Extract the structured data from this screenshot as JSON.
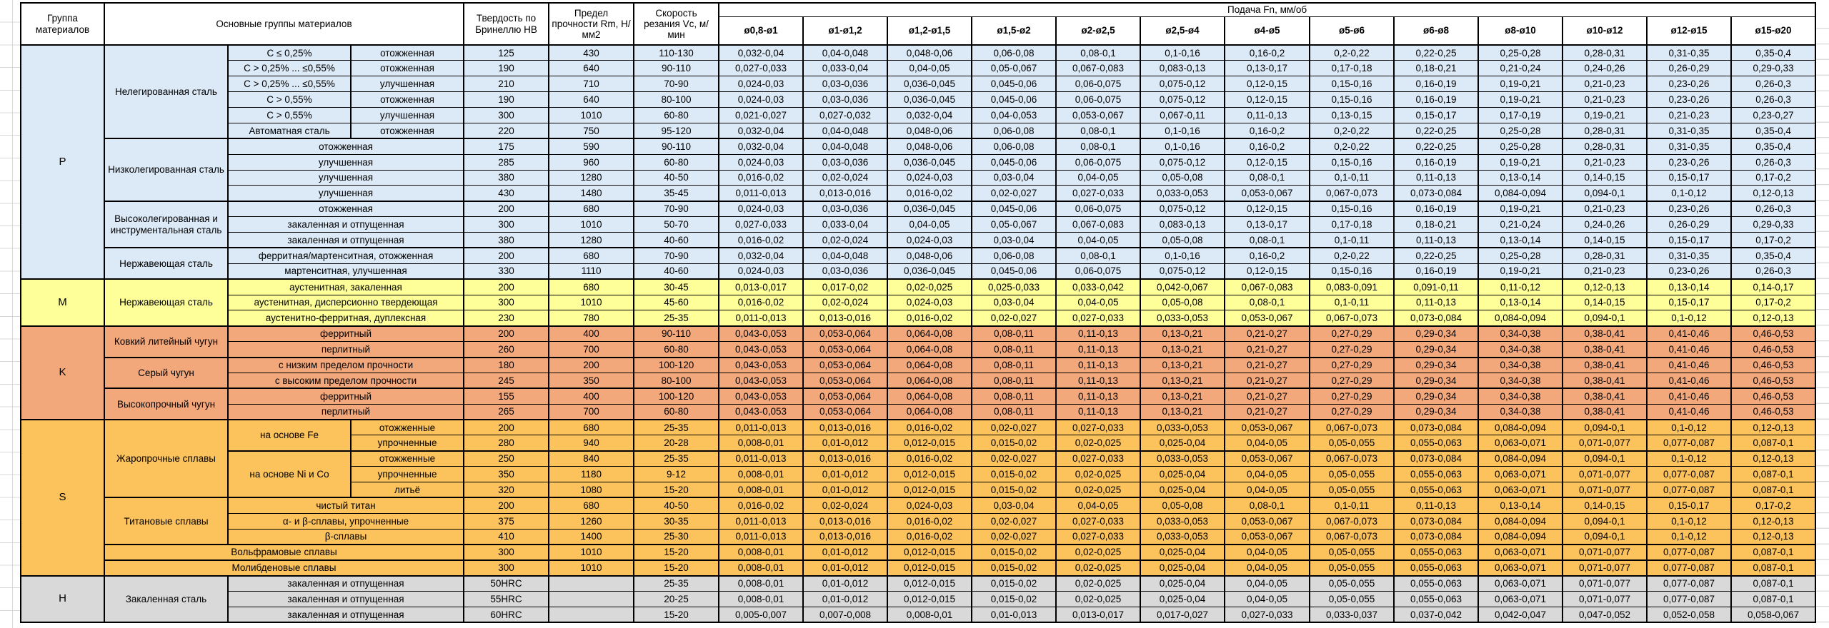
{
  "header": {
    "col_group": "Группа материалов",
    "col_main": "Основные группы материалов",
    "col_hb": "Твердость по Бринеллю HB",
    "col_rm": "Предел прочности Rm, Н/мм2",
    "col_vc": "Скорость резания Vc, м/мин",
    "col_feed": "Подача Fn, мм/об",
    "diameters": [
      "ø0,8-ø1",
      "ø1-ø1,2",
      "ø1,2-ø1,5",
      "ø1,5-ø2",
      "ø2-ø2,5",
      "ø2,5-ø4",
      "ø4-ø5",
      "ø5-ø6",
      "ø6-ø8",
      "ø8-ø10",
      "ø10-ø12",
      "ø12-ø15",
      "ø15-ø20"
    ]
  },
  "feed_sequences": {
    "A": [
      "0,032-0,04",
      "0,04-0,048",
      "0,048-0,06",
      "0,06-0,08",
      "0,08-0,1",
      "0,1-0,16",
      "0,16-0,2",
      "0,2-0,22",
      "0,22-0,25",
      "0,25-0,28",
      "0,28-0,31",
      "0,31-0,35",
      "0,35-0,4"
    ],
    "B": [
      "0,027-0,033",
      "0,033-0,04",
      "0,04-0,05",
      "0,05-0,067",
      "0,067-0,083",
      "0,083-0,13",
      "0,13-0,17",
      "0,17-0,18",
      "0,18-0,21",
      "0,21-0,24",
      "0,24-0,26",
      "0,26-0,29",
      "0,29-0,33"
    ],
    "C": [
      "0,024-0,03",
      "0,03-0,036",
      "0,036-0,045",
      "0,045-0,06",
      "0,06-0,075",
      "0,075-0,12",
      "0,12-0,15",
      "0,15-0,16",
      "0,16-0,19",
      "0,19-0,21",
      "0,21-0,23",
      "0,23-0,26",
      "0,26-0,3"
    ],
    "D": [
      "0,021-0,027",
      "0,027-0,032",
      "0,032-0,04",
      "0,04-0,053",
      "0,053-0,067",
      "0,067-0,11",
      "0,11-0,13",
      "0,13-0,15",
      "0,15-0,17",
      "0,17-0,19",
      "0,19-0,21",
      "0,21-0,23",
      "0,23-0,27"
    ],
    "E": [
      "0,016-0,02",
      "0,02-0,024",
      "0,024-0,03",
      "0,03-0,04",
      "0,04-0,05",
      "0,05-0,08",
      "0,08-0,1",
      "0,1-0,11",
      "0,11-0,13",
      "0,13-0,14",
      "0,14-0,15",
      "0,15-0,17",
      "0,17-0,2"
    ],
    "F": [
      "0,011-0,013",
      "0,013-0,016",
      "0,016-0,02",
      "0,02-0,027",
      "0,027-0,033",
      "0,033-0,053",
      "0,053-0,067",
      "0,067-0,073",
      "0,073-0,084",
      "0,084-0,094",
      "0,094-0,1",
      "0,1-0,12",
      "0,12-0,13"
    ],
    "G": [
      "0,013-0,017",
      "0,017-0,02",
      "0,02-0,025",
      "0,025-0,033",
      "0,033-0,042",
      "0,042-0,067",
      "0,067-0,083",
      "0,083-0,091",
      "0,091-0,11",
      "0,11-0,12",
      "0,12-0,13",
      "0,13-0,14",
      "0,14-0,17"
    ],
    "H": [
      "0,008-0,01",
      "0,01-0,012",
      "0,012-0,015",
      "0,015-0,02",
      "0,02-0,025",
      "0,025-0,04",
      "0,04-0,05",
      "0,05-0,055",
      "0,055-0,063",
      "0,063-0,071",
      "0,071-0,077",
      "0,077-0,087",
      "0,087-0,1"
    ],
    "K": [
      "0,043-0,053",
      "0,053-0,064",
      "0,064-0,08",
      "0,08-0,11",
      "0,11-0,13",
      "0,13-0,21",
      "0,21-0,27",
      "0,27-0,29",
      "0,29-0,34",
      "0,34-0,38",
      "0,38-0,41",
      "0,41-0,46",
      "0,46-0,53"
    ],
    "I": [
      "0,005-0,007",
      "0,007-0,008",
      "0,008-0,01",
      "0,01-0,013",
      "0,013-0,017",
      "0,017-0,027",
      "0,027-0,033",
      "0,033-0,037",
      "0,037-0,042",
      "0,042-0,047",
      "0,047-0,052",
      "0,052-0,058",
      "0,058-0,067"
    ]
  },
  "groups": [
    {
      "letter": "P",
      "color": "#DCE9F7",
      "rows": [
        {
          "left": [
            {
              "t": "Нелегированная сталь",
              "rs": 6
            },
            {
              "t": "C ≤ 0,25%"
            },
            {
              "t": "отожженная"
            }
          ],
          "hb": "125",
          "rm": "430",
          "vc": "110-130",
          "feeds": "A"
        },
        {
          "left": [
            {
              "t": "C > 0,25% ... ≤0,55%"
            },
            {
              "t": "отожженная"
            }
          ],
          "hb": "190",
          "rm": "640",
          "vc": "90-110",
          "feeds": "B"
        },
        {
          "left": [
            {
              "t": "C > 0,25% ... ≤0,55%"
            },
            {
              "t": "улучшенная"
            }
          ],
          "hb": "210",
          "rm": "710",
          "vc": "70-90",
          "feeds": "C"
        },
        {
          "left": [
            {
              "t": "C > 0,55%"
            },
            {
              "t": "отожженная"
            }
          ],
          "hb": "190",
          "rm": "640",
          "vc": "80-100",
          "feeds": "C"
        },
        {
          "left": [
            {
              "t": "C > 0,55%"
            },
            {
              "t": "улучшенная"
            }
          ],
          "hb": "300",
          "rm": "1010",
          "vc": "60-80",
          "feeds": "D"
        },
        {
          "left": [
            {
              "t": "Автоматная сталь"
            },
            {
              "t": "отожженная"
            }
          ],
          "hb": "220",
          "rm": "750",
          "vc": "95-120",
          "feeds": "A"
        },
        {
          "sep": true,
          "left": [
            {
              "t": "Низколегированная сталь",
              "rs": 4
            },
            {
              "t": "отожженная",
              "cs": 2
            }
          ],
          "hb": "175",
          "rm": "590",
          "vc": "90-110",
          "feeds": "A"
        },
        {
          "left": [
            {
              "t": "улучшенная",
              "cs": 2
            }
          ],
          "hb": "285",
          "rm": "960",
          "vc": "60-80",
          "feeds": "C"
        },
        {
          "left": [
            {
              "t": "улучшенная",
              "cs": 2
            }
          ],
          "hb": "380",
          "rm": "1280",
          "vc": "40-50",
          "feeds": "E"
        },
        {
          "left": [
            {
              "t": "улучшенная",
              "cs": 2
            }
          ],
          "hb": "430",
          "rm": "1480",
          "vc": "35-45",
          "feeds": "F"
        },
        {
          "sep": true,
          "left": [
            {
              "t": "Высоколегированная и инструментальная сталь",
              "rs": 3
            },
            {
              "t": "отожженная",
              "cs": 2
            }
          ],
          "hb": "200",
          "rm": "680",
          "vc": "70-90",
          "feeds": "C"
        },
        {
          "left": [
            {
              "t": "закаленная и отпущенная",
              "cs": 2
            }
          ],
          "hb": "300",
          "rm": "1010",
          "vc": "50-70",
          "feeds": "B"
        },
        {
          "left": [
            {
              "t": "закаленная и отпущенная",
              "cs": 2
            }
          ],
          "hb": "380",
          "rm": "1280",
          "vc": "40-60",
          "feeds": "E"
        },
        {
          "sep": true,
          "left": [
            {
              "t": "Нержавеющая сталь",
              "rs": 2
            },
            {
              "t": "ферритная/мартенситная, отожженная",
              "cs": 2
            }
          ],
          "hb": "200",
          "rm": "680",
          "vc": "70-90",
          "feeds": "A"
        },
        {
          "left": [
            {
              "t": "мартенситная, улучшенная",
              "cs": 2
            }
          ],
          "hb": "330",
          "rm": "1110",
          "vc": "40-60",
          "feeds": "C"
        }
      ]
    },
    {
      "letter": "M",
      "color": "#FFFF99",
      "rows": [
        {
          "left": [
            {
              "t": "Нержавеющая сталь",
              "rs": 3
            },
            {
              "t": "аустенитная, закаленная",
              "cs": 2
            }
          ],
          "hb": "200",
          "rm": "680",
          "vc": "30-45",
          "feeds": "G"
        },
        {
          "left": [
            {
              "t": "аустенитная, дисперсионно твердеющая",
              "cs": 2
            }
          ],
          "hb": "300",
          "rm": "1010",
          "vc": "45-60",
          "feeds": "E"
        },
        {
          "left": [
            {
              "t": "аустенитно-ферритная, дуплексная",
              "cs": 2
            }
          ],
          "hb": "230",
          "rm": "780",
          "vc": "25-35",
          "feeds": "F"
        }
      ]
    },
    {
      "letter": "K",
      "color": "#F3A87C",
      "rows": [
        {
          "left": [
            {
              "t": "Ковкий литейный чугун",
              "rs": 2
            },
            {
              "t": "ферритный",
              "cs": 2
            }
          ],
          "hb": "200",
          "rm": "400",
          "vc": "90-110",
          "feeds": "K"
        },
        {
          "left": [
            {
              "t": "перлитный",
              "cs": 2
            }
          ],
          "hb": "260",
          "rm": "700",
          "vc": "60-80",
          "feeds": "K"
        },
        {
          "sep": true,
          "left": [
            {
              "t": "Серый чугун",
              "rs": 2
            },
            {
              "t": "с низким пределом прочности",
              "cs": 2
            }
          ],
          "hb": "180",
          "rm": "200",
          "vc": "100-120",
          "feeds": "K"
        },
        {
          "left": [
            {
              "t": "с высоким пределом прочности",
              "cs": 2
            }
          ],
          "hb": "245",
          "rm": "350",
          "vc": "80-100",
          "feeds": "K"
        },
        {
          "sep": true,
          "left": [
            {
              "t": "Высокопрочный чугун",
              "rs": 2
            },
            {
              "t": "ферритный",
              "cs": 2
            }
          ],
          "hb": "155",
          "rm": "400",
          "vc": "100-120",
          "feeds": "K"
        },
        {
          "left": [
            {
              "t": "перлитный",
              "cs": 2
            }
          ],
          "hb": "265",
          "rm": "700",
          "vc": "60-80",
          "feeds": "K"
        }
      ]
    },
    {
      "letter": "S",
      "color": "#FCC25C",
      "rows": [
        {
          "left": [
            {
              "t": "Жаропрочные сплавы",
              "rs": 5
            },
            {
              "t": "на основе Fe",
              "rs": 2
            },
            {
              "t": "отожженные"
            }
          ],
          "hb": "200",
          "rm": "680",
          "vc": "25-35",
          "feeds": "F"
        },
        {
          "left": [
            {
              "t": "упрочненные"
            }
          ],
          "hb": "280",
          "rm": "940",
          "vc": "20-28",
          "feeds": "H"
        },
        {
          "sep": true,
          "left": [
            {
              "t": "на основе Ni и Co",
              "rs": 3
            },
            {
              "t": "отожженные"
            }
          ],
          "hb": "250",
          "rm": "840",
          "vc": "25-35",
          "feeds": "F"
        },
        {
          "left": [
            {
              "t": "упрочненные"
            }
          ],
          "hb": "350",
          "rm": "1180",
          "vc": "9-12",
          "feeds": "H"
        },
        {
          "left": [
            {
              "t": "литьё"
            }
          ],
          "hb": "320",
          "rm": "1080",
          "vc": "15-20",
          "feeds": "H"
        },
        {
          "sep": true,
          "left": [
            {
              "t": "Титановые сплавы",
              "rs": 3
            },
            {
              "t": "чистый титан",
              "cs": 2
            }
          ],
          "hb": "200",
          "rm": "680",
          "vc": "40-50",
          "feeds": "E"
        },
        {
          "left": [
            {
              "t": "α- и β-сплавы, упрочненные",
              "cs": 2
            }
          ],
          "hb": "375",
          "rm": "1260",
          "vc": "30-35",
          "feeds": "F"
        },
        {
          "left": [
            {
              "t": "β-сплавы",
              "cs": 2
            }
          ],
          "hb": "410",
          "rm": "1400",
          "vc": "25-30",
          "feeds": "F"
        },
        {
          "sep": true,
          "left": [
            {
              "t": "Вольфрамовые сплавы",
              "cs": 3
            }
          ],
          "hb": "300",
          "rm": "1010",
          "vc": "15-20",
          "feeds": "H"
        },
        {
          "sep": true,
          "left": [
            {
              "t": "Молибденовые сплавы",
              "cs": 3
            }
          ],
          "hb": "300",
          "rm": "1010",
          "vc": "15-20",
          "feeds": "H"
        }
      ]
    },
    {
      "letter": "H",
      "color": "#D9D9D9",
      "rows": [
        {
          "left": [
            {
              "t": "Закаленная сталь",
              "rs": 3
            },
            {
              "t": "закаленная и отпущенная",
              "cs": 2
            }
          ],
          "hb": "50HRC",
          "rm": "",
          "vc": "25-35",
          "feeds": "H"
        },
        {
          "left": [
            {
              "t": "закаленная и отпущенная",
              "cs": 2
            }
          ],
          "hb": "55HRC",
          "rm": "",
          "vc": "20-25",
          "feeds": "H"
        },
        {
          "left": [
            {
              "t": "закаленная и отпущенная",
              "cs": 2
            }
          ],
          "hb": "60HRC",
          "rm": "",
          "vc": "15-20",
          "feeds": "I"
        }
      ]
    }
  ]
}
